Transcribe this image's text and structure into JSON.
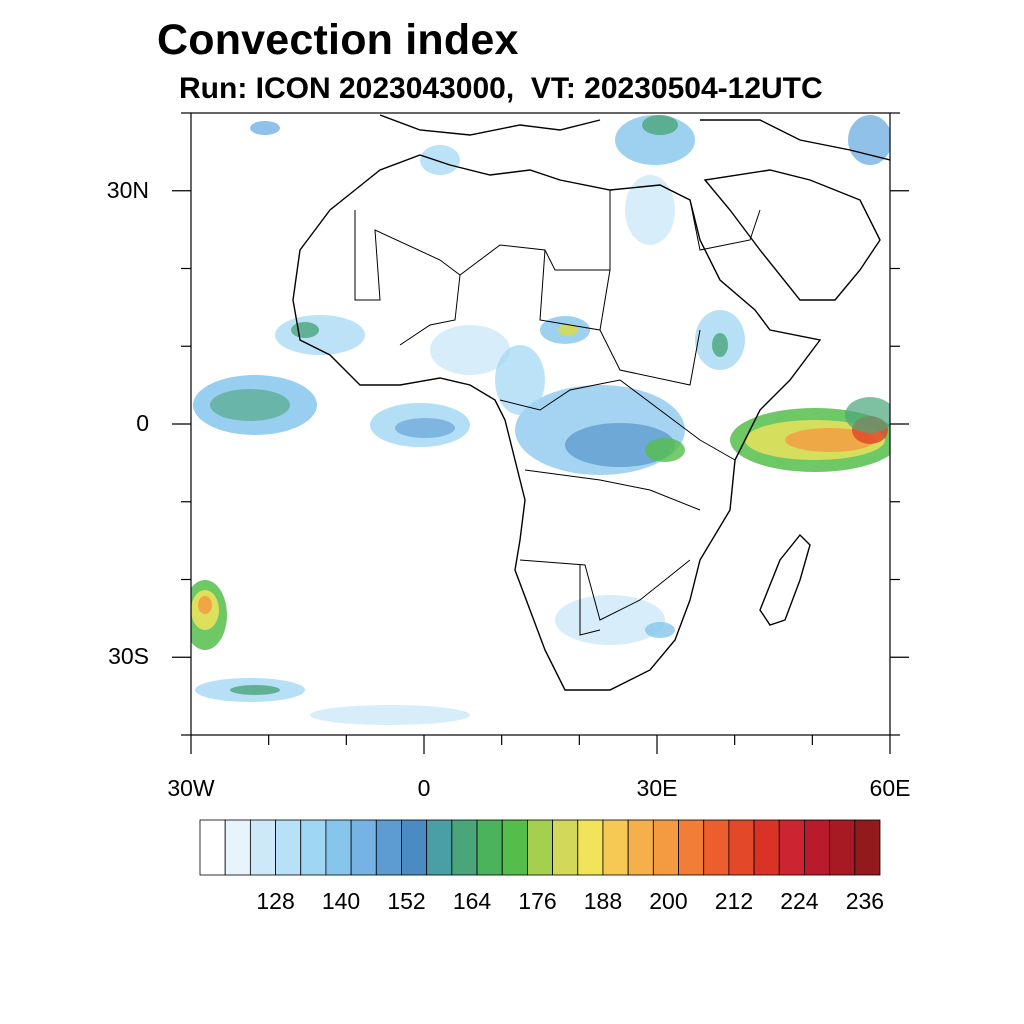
{
  "title": "Convection index",
  "subtitle": "Run: ICON 2023043000,  VT: 20230504-12UTC",
  "map": {
    "lon_range": [
      -30,
      60
    ],
    "lat_range": [
      -40,
      40
    ],
    "lat_ticks": [
      {
        "value": 30,
        "label": "30N"
      },
      {
        "value": 0,
        "label": "0"
      },
      {
        "value": -30,
        "label": "30S"
      }
    ],
    "lon_ticks": [
      {
        "value": -30,
        "label": "30W"
      },
      {
        "value": 0,
        "label": "0"
      },
      {
        "value": 30,
        "label": "30E"
      },
      {
        "value": 60,
        "label": "60E"
      }
    ]
  },
  "colorbar": {
    "colors": [
      "#ffffff",
      "#e8f4fc",
      "#cde8f7",
      "#b8e0f6",
      "#9fd6f4",
      "#86c6ec",
      "#74b3e3",
      "#5d9bd3",
      "#4b8bc4",
      "#4a9fa6",
      "#4aa57a",
      "#4bb35b",
      "#55be4a",
      "#a7cf4f",
      "#d2d95a",
      "#f0e45b",
      "#f6c955",
      "#f5b04c",
      "#f49a40",
      "#f17d36",
      "#ec5e2d",
      "#e34929",
      "#d93328",
      "#cc2530",
      "#b81c2c",
      "#a81a23",
      "#931a1c"
    ],
    "labels": [
      "128",
      "140",
      "152",
      "164",
      "176",
      "188",
      "200",
      "212",
      "224",
      "236"
    ]
  }
}
